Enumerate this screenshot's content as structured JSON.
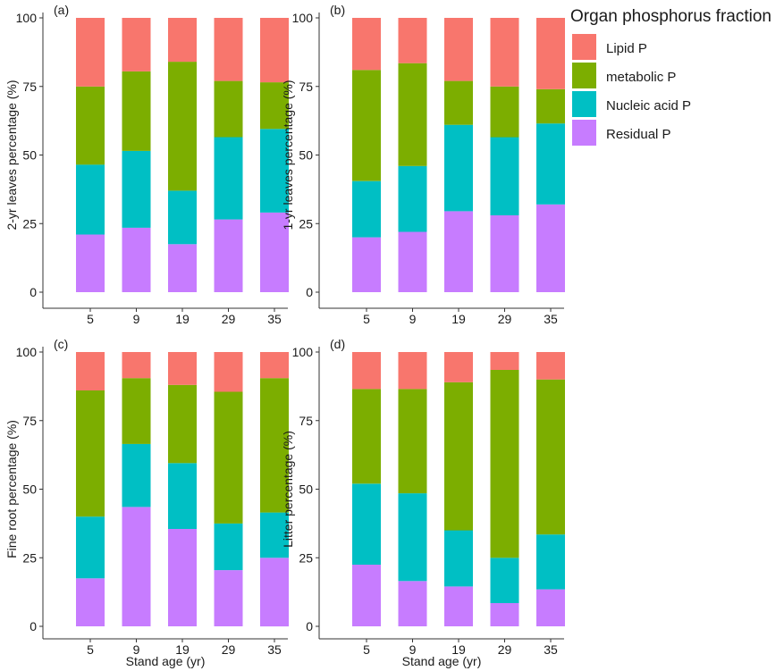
{
  "legend": {
    "title": "Organ phosphorus fraction",
    "items": [
      {
        "label": "Lipid P",
        "color": "#f8766d"
      },
      {
        "label": "metabolic P",
        "color": "#7cae00"
      },
      {
        "label": "Nucleic acid P",
        "color": "#00bfc4"
      },
      {
        "label": "Residual P",
        "color": "#c77cff"
      }
    ]
  },
  "chart_data": [
    {
      "type": "bar",
      "stacked": true,
      "panel": "(a)",
      "ylabel": "2-yr leaves percentage (%)",
      "xlabel": "",
      "categories": [
        "5",
        "9",
        "19",
        "29",
        "35"
      ],
      "ylim": [
        0,
        100
      ],
      "yticks": [
        "0",
        "25",
        "50",
        "75",
        "100"
      ],
      "series": [
        {
          "name": "Residual P",
          "values": [
            21,
            23.5,
            17.5,
            26.5,
            29
          ]
        },
        {
          "name": "Nucleic acid P",
          "values": [
            25.5,
            28,
            19.5,
            30,
            30.5
          ]
        },
        {
          "name": "metabolic P",
          "values": [
            28.5,
            29,
            47,
            20.5,
            17
          ]
        },
        {
          "name": "Lipid P",
          "values": [
            25,
            19.5,
            16,
            23,
            23.5
          ]
        }
      ]
    },
    {
      "type": "bar",
      "stacked": true,
      "panel": "(b)",
      "ylabel": "1-yr leaves percentage (%)",
      "xlabel": "",
      "categories": [
        "5",
        "9",
        "19",
        "29",
        "35"
      ],
      "ylim": [
        0,
        100
      ],
      "yticks": [
        "0",
        "25",
        "50",
        "75",
        "100"
      ],
      "series": [
        {
          "name": "Residual P",
          "values": [
            20,
            22,
            29.5,
            28,
            32
          ]
        },
        {
          "name": "Nucleic acid P",
          "values": [
            20.5,
            24,
            31.5,
            28.5,
            29.5
          ]
        },
        {
          "name": "metabolic P",
          "values": [
            40.5,
            37.5,
            16,
            18.5,
            12.5
          ]
        },
        {
          "name": "Lipid P",
          "values": [
            19,
            16.5,
            23,
            25,
            26
          ]
        }
      ]
    },
    {
      "type": "bar",
      "stacked": true,
      "panel": "(c)",
      "ylabel": "Fine root percentage (%)",
      "xlabel": "Stand age (yr)",
      "categories": [
        "5",
        "9",
        "19",
        "29",
        "35"
      ],
      "ylim": [
        0,
        100
      ],
      "yticks": [
        "0",
        "25",
        "50",
        "75",
        "100"
      ],
      "series": [
        {
          "name": "Residual P",
          "values": [
            17.5,
            43.5,
            35.5,
            20.5,
            25
          ]
        },
        {
          "name": "Nucleic acid P",
          "values": [
            22.5,
            23,
            24,
            17,
            16.5
          ]
        },
        {
          "name": "metabolic P",
          "values": [
            46,
            24,
            28.5,
            48,
            49
          ]
        },
        {
          "name": "Lipid P",
          "values": [
            14,
            9.5,
            12,
            14.5,
            9.5
          ]
        }
      ]
    },
    {
      "type": "bar",
      "stacked": true,
      "panel": "(d)",
      "ylabel": "Litter percentage (%)",
      "xlabel": "Stand age (yr)",
      "categories": [
        "5",
        "9",
        "19",
        "29",
        "35"
      ],
      "ylim": [
        0,
        100
      ],
      "yticks": [
        "0",
        "25",
        "50",
        "75",
        "100"
      ],
      "series": [
        {
          "name": "Residual P",
          "values": [
            22.5,
            16.5,
            14.5,
            8.5,
            13.5
          ]
        },
        {
          "name": "Nucleic acid P",
          "values": [
            29.5,
            32,
            20.5,
            16.5,
            20
          ]
        },
        {
          "name": "metabolic P",
          "values": [
            34.5,
            38,
            54,
            68.5,
            56.5
          ]
        },
        {
          "name": "Lipid P",
          "values": [
            13.5,
            13.5,
            11,
            6.5,
            10
          ]
        }
      ]
    }
  ]
}
